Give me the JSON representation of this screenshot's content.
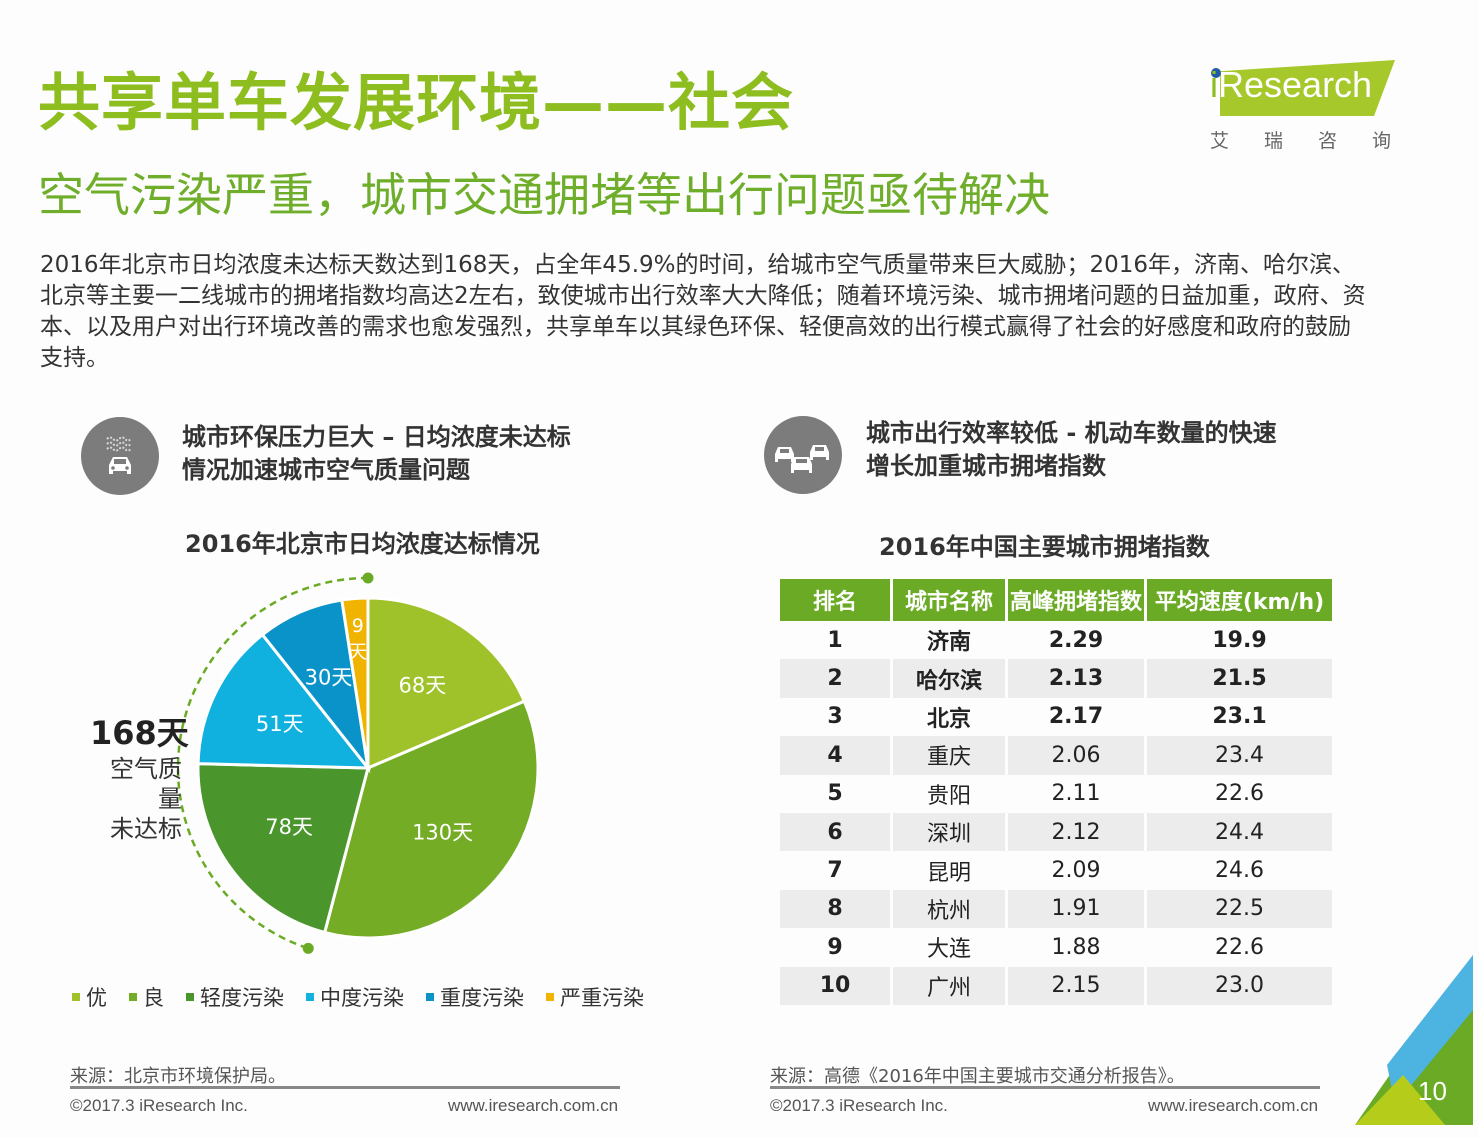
{
  "header": {
    "title": "共享单车发展环境——社会",
    "subtitle": "空气污染严重，城市交通拥堵等出行问题亟待解决",
    "body": "2016年北京市日均浓度未达标天数达到168天，占全年45.9%的时间，给城市空气质量带来巨大威胁；2016年，济南、哈尔滨、北京等主要一二线城市的拥堵指数均高达2左右，致使城市出行效率大大降低；随着环境污染、城市拥堵问题的日益加重，政府、资本、以及用户对出行环境改善的需求也愈发强烈，共享单车以其绿色环保、轻便高效的出行模式赢得了社会的好感度和政府的鼓励支持。"
  },
  "logo": {
    "brand_i": "i",
    "brand_rest": "Research",
    "cn": "艾瑞咨询",
    "brand_color": "#a6c82b"
  },
  "left_section": {
    "icon": "smog-car-icon",
    "heading_line1": "城市环保压力巨大 – 日均浓度未达标",
    "heading_line2": "情况加速城市空气质量问题",
    "callout_value": "168天",
    "callout_line1": "空气质量",
    "callout_line2": "未达标",
    "source": "来源：北京市环境保护局。",
    "copyright": "©2017.3 iResearch Inc.",
    "website": "www.iresearch.com.cn"
  },
  "right_section": {
    "icon": "traffic-jam-icon",
    "heading_line1": "城市出行效率较低 - 机动车数量的快速",
    "heading_line2": "增长加重城市拥堵指数",
    "source": "来源：高德《2016年中国主要城市交通分析报告》。",
    "copyright": "©2017.3 iResearch Inc.",
    "website": "www.iresearch.com.cn"
  },
  "chart_data": [
    {
      "type": "pie",
      "title": "2016年北京市日均浓度达标情况",
      "unit": "天",
      "start": "12 o'clock, clockwise",
      "slices": [
        {
          "label": "优",
          "value": 68,
          "display": "68天",
          "color": "#9fc22a"
        },
        {
          "label": "良",
          "value": 130,
          "display": "130天",
          "color": "#74ac25"
        },
        {
          "label": "轻度污染",
          "value": 78,
          "display": "78天",
          "color": "#4a962c"
        },
        {
          "label": "中度污染",
          "value": 51,
          "display": "51天",
          "color": "#10b1df"
        },
        {
          "label": "重度污染",
          "value": 30,
          "display": "30天",
          "color": "#0a93c9"
        },
        {
          "label": "严重污染",
          "value": 9,
          "display": "9天",
          "color": "#f0b400"
        }
      ],
      "annotation": "168天 空气质量未达标",
      "legend_position": "bottom"
    },
    {
      "type": "table",
      "title": "2016年中国主要城市拥堵指数",
      "columns": [
        "排名",
        "城市名称",
        "高峰拥堵指数",
        "平均速度(km/h)"
      ],
      "rows": [
        [
          "1",
          "济南",
          "2.29",
          "19.9"
        ],
        [
          "2",
          "哈尔滨",
          "2.13",
          "21.5"
        ],
        [
          "3",
          "北京",
          "2.17",
          "23.1"
        ],
        [
          "4",
          "重庆",
          "2.06",
          "23.4"
        ],
        [
          "5",
          "贵阳",
          "2.11",
          "22.6"
        ],
        [
          "6",
          "深圳",
          "2.12",
          "24.4"
        ],
        [
          "7",
          "昆明",
          "2.09",
          "24.6"
        ],
        [
          "8",
          "杭州",
          "1.91",
          "22.5"
        ],
        [
          "9",
          "大连",
          "1.88",
          "22.6"
        ],
        [
          "10",
          "广州",
          "2.15",
          "23.0"
        ]
      ],
      "header_color": "#6aaa24"
    }
  ],
  "page": {
    "number": "10",
    "accent_colors": [
      "#4db3e0",
      "#6aaa24",
      "#b5cc1a"
    ]
  }
}
